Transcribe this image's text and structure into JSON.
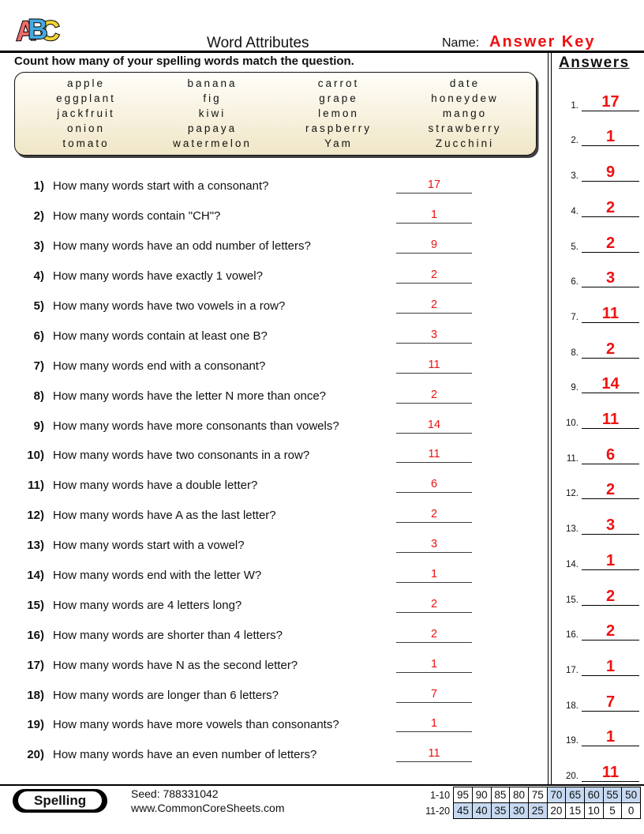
{
  "header": {
    "logo": [
      "A",
      "B",
      "C"
    ],
    "title": "Word Attributes",
    "name_label": "Name:",
    "name_value": "Answer Key"
  },
  "instruction": "Count how many of your spelling words match the question.",
  "word_bank": {
    "columns": 4,
    "words": [
      "apple",
      "banana",
      "carrot",
      "date",
      "eggplant",
      "fig",
      "grape",
      "honeydew",
      "jackfruit",
      "kiwi",
      "lemon",
      "mango",
      "onion",
      "papaya",
      "raspberry",
      "strawberry",
      "tomato",
      "watermelon",
      "Yam",
      "Zucchini"
    ]
  },
  "questions": [
    {
      "num": "1)",
      "text": "How many words start with a consonant?",
      "answer": "17"
    },
    {
      "num": "2)",
      "text": "How many words contain \"CH\"?",
      "answer": "1"
    },
    {
      "num": "3)",
      "text": "How many words have an odd number of letters?",
      "answer": "9"
    },
    {
      "num": "4)",
      "text": "How many words have exactly 1 vowel?",
      "answer": "2"
    },
    {
      "num": "5)",
      "text": "How many words have two vowels in a row?",
      "answer": "2"
    },
    {
      "num": "6)",
      "text": "How many words contain at least one B?",
      "answer": "3"
    },
    {
      "num": "7)",
      "text": "How many words end with a consonant?",
      "answer": "11"
    },
    {
      "num": "8)",
      "text": "How many words have the letter N more than once?",
      "answer": "2"
    },
    {
      "num": "9)",
      "text": "How many words have more consonants than vowels?",
      "answer": "14"
    },
    {
      "num": "10)",
      "text": "How many words have two consonants in a row?",
      "answer": "11"
    },
    {
      "num": "11)",
      "text": "How many words have a double letter?",
      "answer": "6"
    },
    {
      "num": "12)",
      "text": "How many words have A as the last letter?",
      "answer": "2"
    },
    {
      "num": "13)",
      "text": "How many words start with a vowel?",
      "answer": "3"
    },
    {
      "num": "14)",
      "text": "How many words end with the letter W?",
      "answer": "1"
    },
    {
      "num": "15)",
      "text": "How many words are 4 letters long?",
      "answer": "2"
    },
    {
      "num": "16)",
      "text": "How many words are shorter than 4 letters?",
      "answer": "2"
    },
    {
      "num": "17)",
      "text": "How many words have N as the second letter?",
      "answer": "1"
    },
    {
      "num": "18)",
      "text": "How many words are longer than 6 letters?",
      "answer": "7"
    },
    {
      "num": "19)",
      "text": "How many words have more vowels than consonants?",
      "answer": "1"
    },
    {
      "num": "20)",
      "text": "How many words have an even number of letters?",
      "answer": "11"
    }
  ],
  "answers_panel": {
    "title": "Answers",
    "items": [
      {
        "num": "1.",
        "value": "17"
      },
      {
        "num": "2.",
        "value": "1"
      },
      {
        "num": "3.",
        "value": "9"
      },
      {
        "num": "4.",
        "value": "2"
      },
      {
        "num": "5.",
        "value": "2"
      },
      {
        "num": "6.",
        "value": "3"
      },
      {
        "num": "7.",
        "value": "11"
      },
      {
        "num": "8.",
        "value": "2"
      },
      {
        "num": "9.",
        "value": "14"
      },
      {
        "num": "10.",
        "value": "11"
      },
      {
        "num": "11.",
        "value": "6"
      },
      {
        "num": "12.",
        "value": "2"
      },
      {
        "num": "13.",
        "value": "3"
      },
      {
        "num": "14.",
        "value": "1"
      },
      {
        "num": "15.",
        "value": "2"
      },
      {
        "num": "16.",
        "value": "2"
      },
      {
        "num": "17.",
        "value": "1"
      },
      {
        "num": "18.",
        "value": "7"
      },
      {
        "num": "19.",
        "value": "1"
      },
      {
        "num": "20.",
        "value": "11"
      }
    ]
  },
  "footer": {
    "subject": "Spelling",
    "seed": "Seed: 788331042",
    "website": "www.CommonCoreSheets.com",
    "score_row1_label": "1-10",
    "score_row2_label": "11-20",
    "score_row1": [
      {
        "v": "95",
        "cls": "cell"
      },
      {
        "v": "90",
        "cls": "cell"
      },
      {
        "v": "85",
        "cls": "cell"
      },
      {
        "v": "80",
        "cls": "cell"
      },
      {
        "v": "75",
        "cls": "cell"
      },
      {
        "v": "70",
        "cls": "cell hl"
      },
      {
        "v": "65",
        "cls": "cell hl"
      },
      {
        "v": "60",
        "cls": "cell hl"
      },
      {
        "v": "55",
        "cls": "cell hl"
      },
      {
        "v": "50",
        "cls": "cell hl"
      }
    ],
    "score_row2": [
      {
        "v": "45",
        "cls": "cell hl"
      },
      {
        "v": "40",
        "cls": "cell hl"
      },
      {
        "v": "35",
        "cls": "cell hl"
      },
      {
        "v": "30",
        "cls": "cell hl"
      },
      {
        "v": "25",
        "cls": "cell hl"
      },
      {
        "v": "20",
        "cls": "cell"
      },
      {
        "v": "15",
        "cls": "cell"
      },
      {
        "v": "10",
        "cls": "cell"
      },
      {
        "v": "5",
        "cls": "cell"
      },
      {
        "v": "0",
        "cls": "cell"
      }
    ]
  },
  "colors": {
    "answer_red": "#ee1111",
    "score_highlight": "#c6d9f1",
    "logo_a": "#ee6b6b",
    "logo_b": "#45a9df",
    "logo_c": "#f3d336",
    "word_box_top": "#fffef9",
    "word_box_bottom": "#f0e6c7"
  }
}
